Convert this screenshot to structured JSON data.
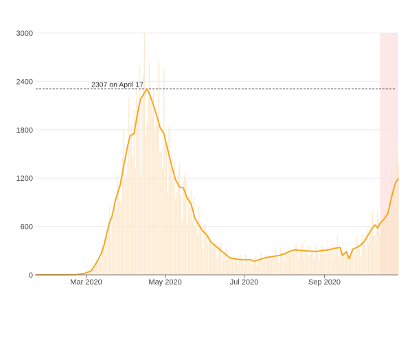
{
  "chart_data": {
    "type": "line",
    "title": "",
    "xlabel": "",
    "ylabel": "",
    "ylim": [
      0,
      3000
    ],
    "xlim": [
      "2020-01-22",
      "2020-10-28"
    ],
    "grid": true,
    "y_ticks": [
      {
        "value": 0,
        "label": "0"
      },
      {
        "value": 600,
        "label": "600"
      },
      {
        "value": 1200,
        "label": "1200"
      },
      {
        "value": 1800,
        "label": "1800"
      },
      {
        "value": 2400,
        "label": "2400"
      },
      {
        "value": 3000,
        "label": "3000"
      }
    ],
    "x_ticks": [
      {
        "date": "2020-03-01",
        "label": "Mar 2020"
      },
      {
        "date": "2020-05-01",
        "label": "May 2020"
      },
      {
        "date": "2020-07-01",
        "label": "Jul 2020"
      },
      {
        "date": "2020-09-01",
        "label": "Sep 2020"
      }
    ],
    "reference_line": {
      "value": 2307,
      "label": "2307 on April 17"
    },
    "shaded_region": {
      "start": "2020-10-14",
      "end": "2020-10-28",
      "color": "#fbe4e2"
    },
    "bar_color": "#fde3c2",
    "line_color": "#f5a623",
    "series": [
      {
        "type": "line",
        "points": [
          [
            "2020-01-22",
            0
          ],
          [
            "2020-02-15",
            0
          ],
          [
            "2020-02-22",
            2
          ],
          [
            "2020-02-29",
            20
          ],
          [
            "2020-03-05",
            50
          ],
          [
            "2020-03-10",
            180
          ],
          [
            "2020-03-13",
            280
          ],
          [
            "2020-03-15",
            380
          ],
          [
            "2020-03-17",
            520
          ],
          [
            "2020-03-19",
            650
          ],
          [
            "2020-03-21",
            730
          ],
          [
            "2020-03-24",
            950
          ],
          [
            "2020-03-27",
            1100
          ],
          [
            "2020-03-30",
            1350
          ],
          [
            "2020-04-02",
            1600
          ],
          [
            "2020-04-04",
            1730
          ],
          [
            "2020-04-07",
            1750
          ],
          [
            "2020-04-09",
            1950
          ],
          [
            "2020-04-12",
            2180
          ],
          [
            "2020-04-14",
            2230
          ],
          [
            "2020-04-17",
            2307
          ],
          [
            "2020-04-19",
            2240
          ],
          [
            "2020-04-21",
            2150
          ],
          [
            "2020-04-24",
            2000
          ],
          [
            "2020-04-27",
            1830
          ],
          [
            "2020-04-30",
            1750
          ],
          [
            "2020-05-03",
            1550
          ],
          [
            "2020-05-06",
            1350
          ],
          [
            "2020-05-09",
            1180
          ],
          [
            "2020-05-12",
            1090
          ],
          [
            "2020-05-15",
            1080
          ],
          [
            "2020-05-18",
            950
          ],
          [
            "2020-05-21",
            880
          ],
          [
            "2020-05-24",
            700
          ],
          [
            "2020-05-27",
            620
          ],
          [
            "2020-05-30",
            540
          ],
          [
            "2020-06-02",
            500
          ],
          [
            "2020-06-05",
            410
          ],
          [
            "2020-06-08",
            370
          ],
          [
            "2020-06-11",
            330
          ],
          [
            "2020-06-14",
            290
          ],
          [
            "2020-06-17",
            250
          ],
          [
            "2020-06-20",
            210
          ],
          [
            "2020-06-25",
            195
          ],
          [
            "2020-07-01",
            185
          ],
          [
            "2020-07-05",
            190
          ],
          [
            "2020-07-09",
            170
          ],
          [
            "2020-07-12",
            185
          ],
          [
            "2020-07-17",
            210
          ],
          [
            "2020-07-20",
            220
          ],
          [
            "2020-07-24",
            230
          ],
          [
            "2020-07-28",
            240
          ],
          [
            "2020-08-01",
            260
          ],
          [
            "2020-08-05",
            290
          ],
          [
            "2020-08-09",
            310
          ],
          [
            "2020-08-15",
            300
          ],
          [
            "2020-08-20",
            295
          ],
          [
            "2020-08-25",
            290
          ],
          [
            "2020-08-30",
            300
          ],
          [
            "2020-09-04",
            310
          ],
          [
            "2020-09-09",
            330
          ],
          [
            "2020-09-13",
            340
          ],
          [
            "2020-09-15",
            240
          ],
          [
            "2020-09-18",
            290
          ],
          [
            "2020-09-20",
            200
          ],
          [
            "2020-09-23",
            320
          ],
          [
            "2020-09-26",
            340
          ],
          [
            "2020-09-29",
            370
          ],
          [
            "2020-10-02",
            420
          ],
          [
            "2020-10-05",
            500
          ],
          [
            "2020-10-08",
            580
          ],
          [
            "2020-10-10",
            620
          ],
          [
            "2020-10-12",
            580
          ],
          [
            "2020-10-14",
            640
          ],
          [
            "2020-10-17",
            690
          ],
          [
            "2020-10-20",
            760
          ],
          [
            "2020-10-23",
            980
          ],
          [
            "2020-10-26",
            1150
          ],
          [
            "2020-10-28",
            1190
          ]
        ]
      }
    ]
  }
}
